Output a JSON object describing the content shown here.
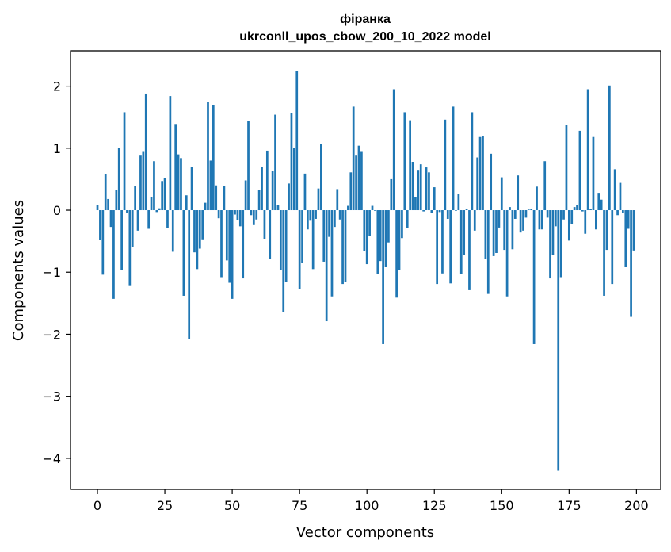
{
  "chart_data": {
    "type": "bar",
    "title": "фіранка",
    "subtitle": "ukrconll_upos_cbow_200_10_2022 model",
    "xlabel": "Vector components",
    "ylabel": "Components values",
    "xlim": [
      -10,
      209
    ],
    "ylim": [
      -4.5,
      2.57
    ],
    "xticks": [
      0,
      25,
      50,
      75,
      100,
      125,
      150,
      175,
      200
    ],
    "yticks": [
      -4,
      -3,
      -2,
      -1,
      0,
      1,
      2
    ],
    "ytick_labels": [
      "−4",
      "−3",
      "−2",
      "−1",
      "0",
      "1",
      "2"
    ],
    "grid": false,
    "color": "#1f77b4",
    "values": [
      0.08,
      -0.48,
      -1.04,
      0.58,
      0.18,
      -0.27,
      -1.43,
      0.33,
      1.01,
      -0.97,
      1.58,
      -0.05,
      -1.21,
      -0.59,
      0.39,
      -0.33,
      0.88,
      0.94,
      1.88,
      -0.3,
      0.21,
      0.79,
      -0.03,
      0.03,
      0.47,
      0.52,
      -0.29,
      1.84,
      -0.67,
      1.39,
      0.9,
      0.84,
      -1.38,
      0.24,
      -2.08,
      0.7,
      -0.68,
      -0.95,
      -0.62,
      -0.47,
      0.12,
      1.75,
      0.8,
      1.7,
      0.4,
      -0.13,
      -1.08,
      0.39,
      -0.81,
      -1.17,
      -1.43,
      -0.07,
      -0.16,
      -0.26,
      -1.1,
      0.48,
      1.44,
      -0.08,
      -0.24,
      -0.15,
      0.32,
      0.7,
      -0.46,
      0.96,
      -0.78,
      0.63,
      1.54,
      0.08,
      -0.96,
      -1.64,
      -1.16,
      0.43,
      1.56,
      1.01,
      2.24,
      -1.27,
      -0.85,
      0.59,
      -0.31,
      -0.17,
      -0.95,
      -0.14,
      0.35,
      1.07,
      -0.83,
      -1.79,
      -0.43,
      -1.39,
      -0.27,
      0.34,
      -0.15,
      -1.19,
      -1.16,
      0.07,
      0.61,
      1.67,
      0.88,
      1.04,
      0.94,
      -0.66,
      -0.87,
      -0.41,
      0.07,
      -0.01,
      -1.03,
      -0.82,
      -2.16,
      -0.92,
      -0.52,
      0.5,
      1.95,
      -1.41,
      -0.96,
      -0.45,
      1.58,
      -0.29,
      1.45,
      0.78,
      0.21,
      0.65,
      0.74,
      -0.02,
      0.69,
      0.61,
      -0.04,
      0.37,
      -1.19,
      -0.03,
      -1.02,
      1.46,
      -0.14,
      -1.18,
      1.67,
      -0.01,
      0.26,
      -1.03,
      -0.72,
      0.02,
      -1.29,
      1.58,
      -0.33,
      0.85,
      1.18,
      1.19,
      -0.79,
      -1.35,
      0.91,
      -0.74,
      -0.69,
      -0.28,
      0.53,
      -0.64,
      -1.39,
      0.05,
      -0.63,
      -0.14,
      0.56,
      -0.36,
      -0.33,
      -0.12,
      0.01,
      0.02,
      -2.16,
      0.38,
      -0.31,
      -0.31,
      0.79,
      -0.12,
      -1.1,
      -0.72,
      -0.26,
      -4.2,
      -1.08,
      -0.15,
      1.38,
      -0.49,
      -0.23,
      0.05,
      0.08,
      1.28,
      -0.02,
      -0.38,
      1.95,
      0.02,
      1.18,
      -0.31,
      0.28,
      0.17,
      -1.38,
      -0.64,
      2.01,
      -1.19,
      0.66,
      -0.08,
      0.44,
      -0.04,
      -0.92,
      -0.3,
      -1.72,
      -0.65
    ]
  }
}
